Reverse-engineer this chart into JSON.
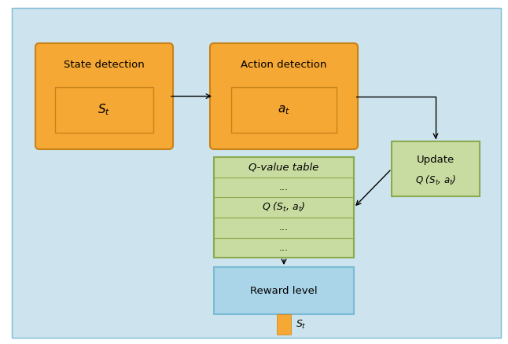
{
  "bg_color": "#cde4ee",
  "border_color": "#7bbcd5",
  "orange_fill": "#f5a833",
  "orange_border": "#c8821a",
  "green_fill": "#c8dba0",
  "green_border": "#8aaa50",
  "blue_fill": "#aad4e8",
  "blue_border": "#7bbcd5",
  "fig_bg": "#ffffff",
  "state_label": "State detection",
  "state_inner": "$S_t$",
  "action_label": "Action detection",
  "action_inner": "$a_t$",
  "qtable_label": "Q-value table",
  "qtable_row1": "...",
  "qtable_row2": "$Q$ ($S_t$, $a_t$)",
  "qtable_row3": "...",
  "qtable_row4": "...",
  "update_line1": "Update",
  "update_line2": "$Q$ ($S_t$, $a_t$)",
  "reward_label": "Reward level",
  "reward_bottom": "$S_t$"
}
